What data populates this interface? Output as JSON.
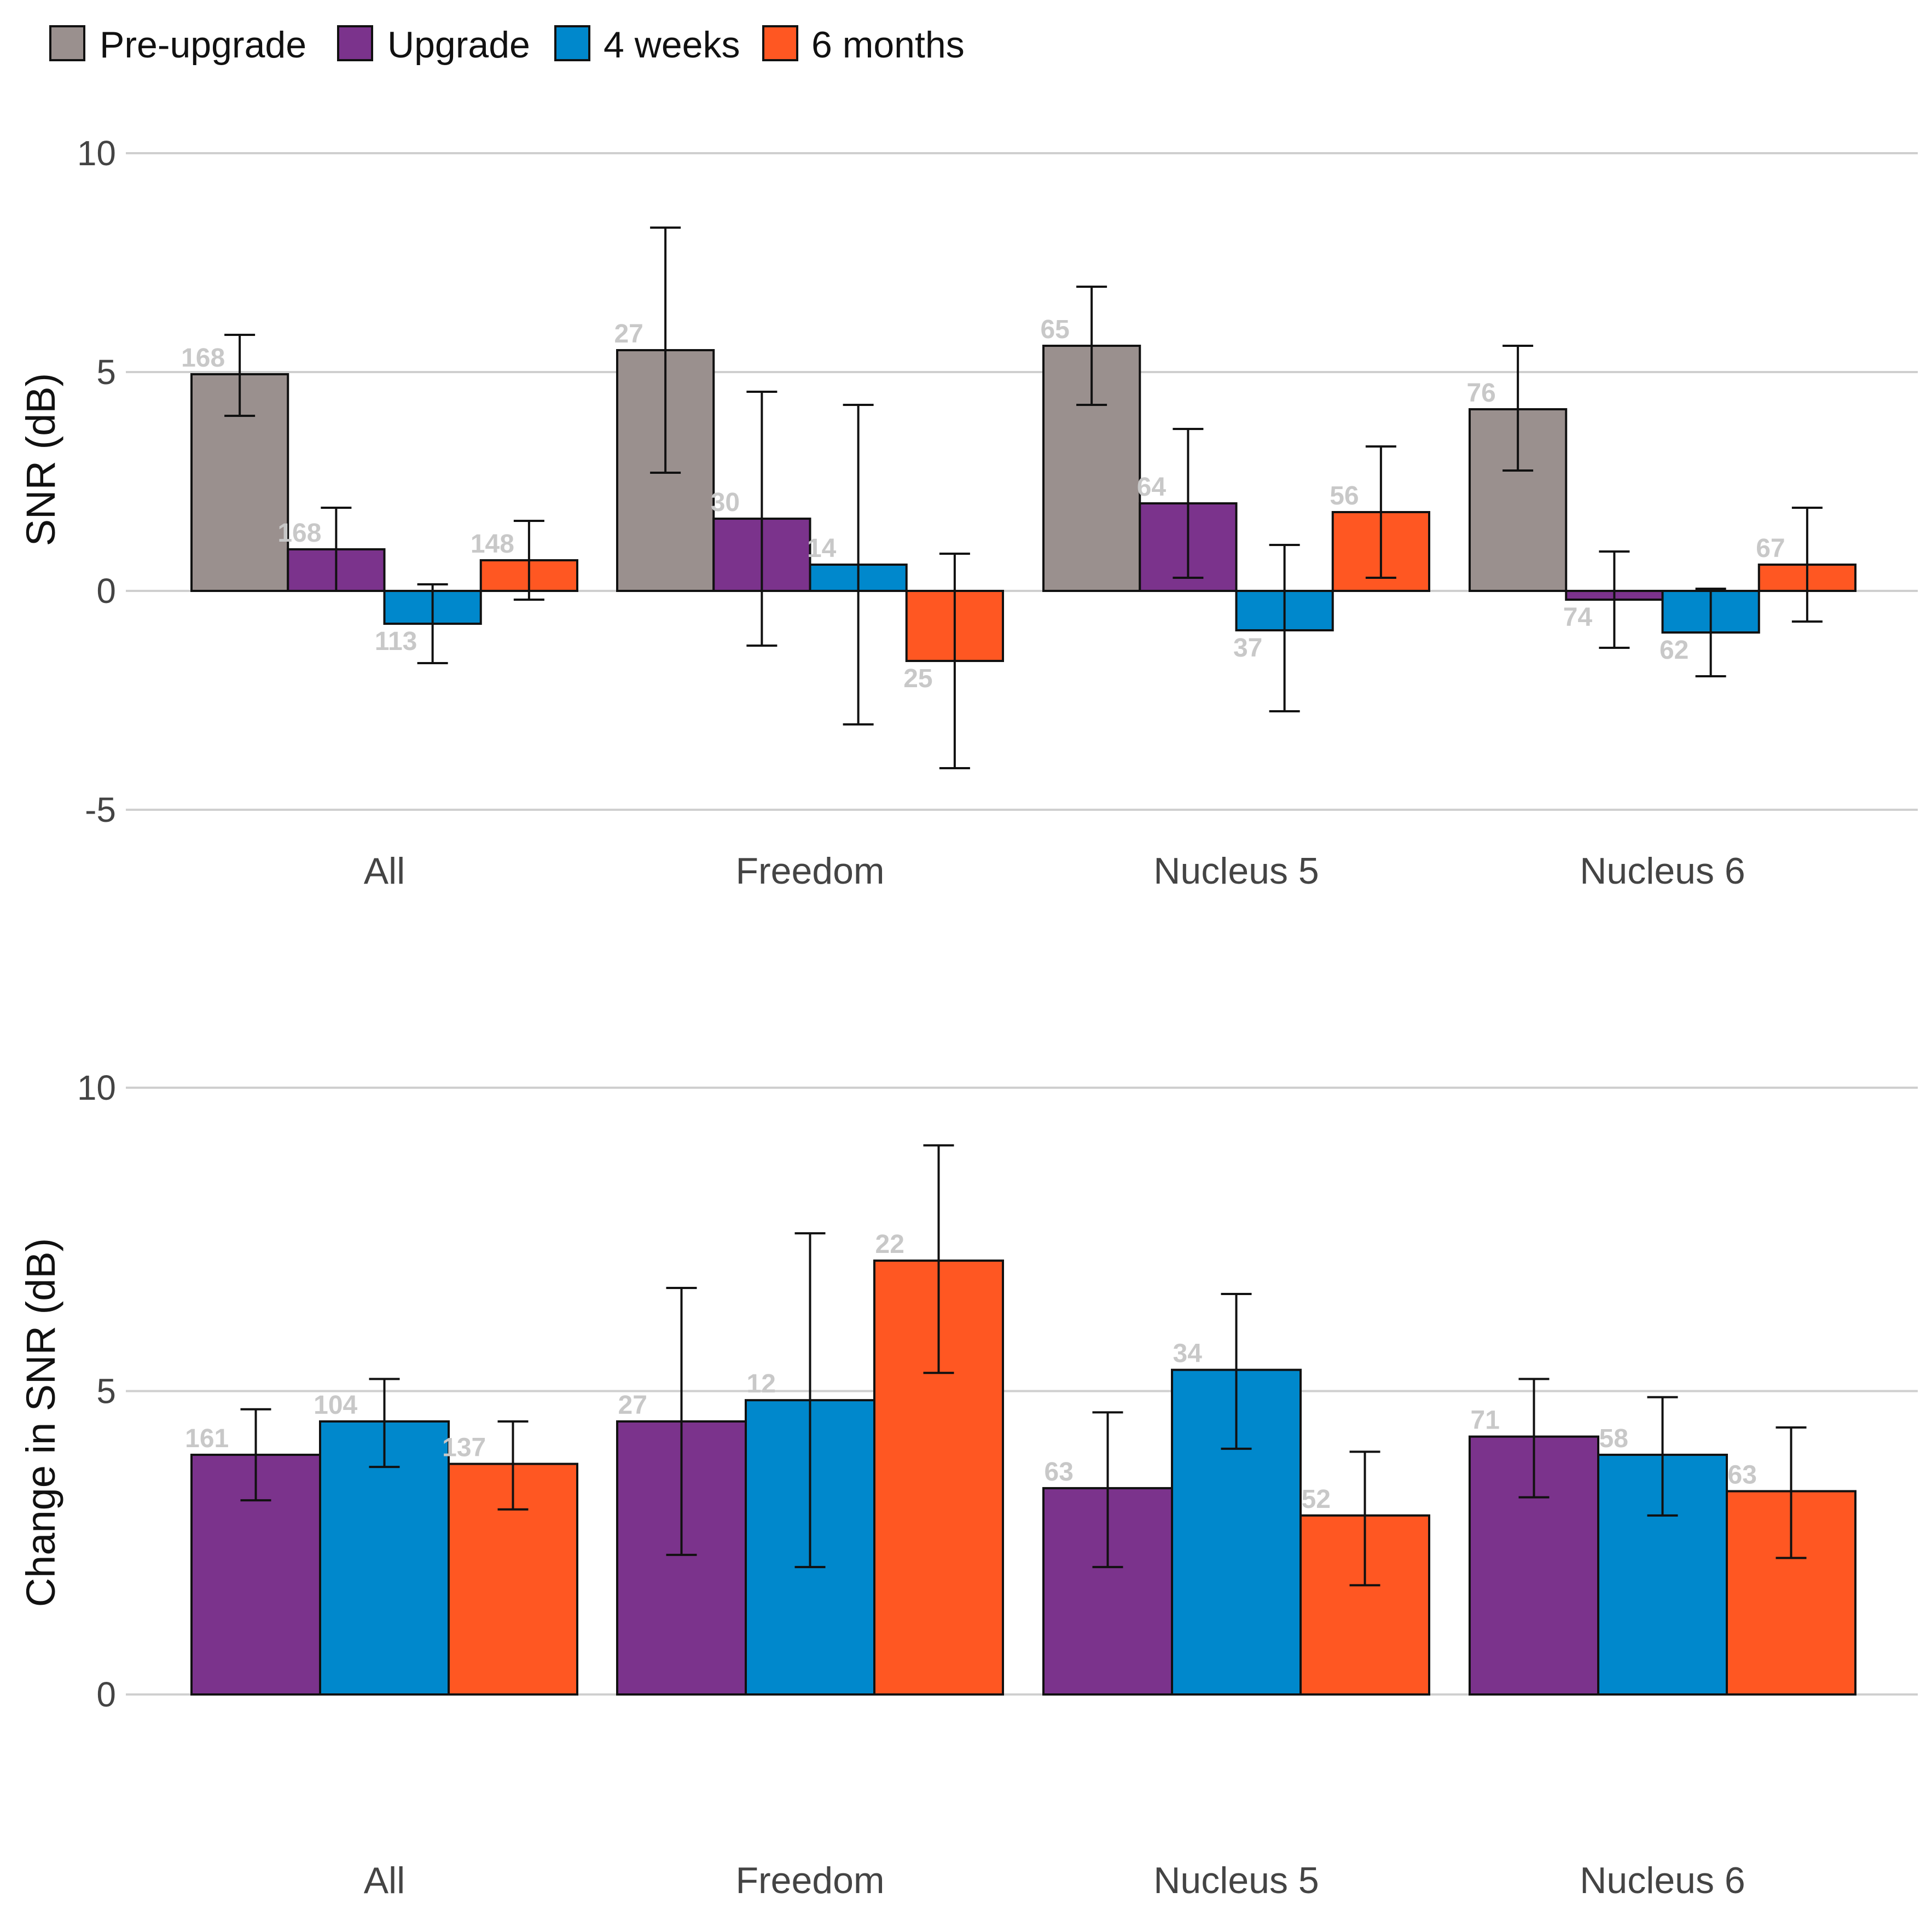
{
  "legend": [
    {
      "name": "Pre-upgrade",
      "color": "#9a908e"
    },
    {
      "name": "Upgrade",
      "color": "#7b338c"
    },
    {
      "name": "4 weeks",
      "color": "#0088cc"
    },
    {
      "name": "6 months",
      "color": "#ff5722"
    }
  ],
  "chart_data": [
    {
      "type": "bar",
      "ylabel": "SNR (dB)",
      "ylim": [
        -5,
        10
      ],
      "yticks": [
        -5,
        0,
        5,
        10
      ],
      "categories": [
        "All",
        "Freedom",
        "Nucleus 5",
        "Nucleus 6"
      ],
      "series": [
        {
          "name": "Pre-upgrade",
          "color": "#9a908e",
          "values": [
            4.95,
            5.5,
            5.6,
            4.15
          ],
          "err_low": [
            4.0,
            2.7,
            4.25,
            2.75
          ],
          "err_high": [
            5.85,
            8.3,
            6.95,
            5.6
          ],
          "n": [
            "168",
            "27",
            "65",
            "76"
          ]
        },
        {
          "name": "Upgrade",
          "color": "#7b338c",
          "values": [
            0.95,
            1.65,
            2.0,
            -0.2
          ],
          "err_low": [
            0.0,
            -1.25,
            0.3,
            -1.3
          ],
          "err_high": [
            1.9,
            4.55,
            3.7,
            0.9
          ],
          "n": [
            "168",
            "30",
            "64",
            "74"
          ]
        },
        {
          "name": "4 weeks",
          "color": "#0088cc",
          "values": [
            -0.75,
            0.6,
            -0.9,
            -0.95
          ],
          "err_low": [
            -1.65,
            -3.05,
            -2.75,
            -1.95
          ],
          "err_high": [
            0.15,
            4.25,
            1.05,
            0.05
          ],
          "n": [
            "113",
            "14",
            "37",
            "62"
          ]
        },
        {
          "name": "6 months",
          "color": "#ff5722",
          "values": [
            0.7,
            -1.6,
            1.8,
            0.6
          ],
          "err_low": [
            -0.2,
            -4.05,
            0.3,
            -0.7
          ],
          "err_high": [
            1.6,
            0.85,
            3.3,
            1.9
          ],
          "n": [
            "148",
            "25",
            "56",
            "67"
          ]
        }
      ]
    },
    {
      "type": "bar",
      "ylabel": "Change in SNR (dB)",
      "ylim": [
        0,
        10
      ],
      "yticks": [
        0,
        5,
        10
      ],
      "categories": [
        "All",
        "Freedom",
        "Nucleus 5",
        "Nucleus 6"
      ],
      "series": [
        {
          "name": "Upgrade",
          "color": "#7b338c",
          "values": [
            3.95,
            4.5,
            3.4,
            4.25
          ],
          "err_low": [
            3.2,
            2.3,
            2.1,
            3.25
          ],
          "err_high": [
            4.7,
            6.7,
            4.65,
            5.2
          ],
          "n": [
            "161",
            "27",
            "63",
            "71"
          ]
        },
        {
          "name": "4 weeks",
          "color": "#0088cc",
          "values": [
            4.5,
            4.85,
            5.35,
            3.95
          ],
          "err_low": [
            3.75,
            2.1,
            4.05,
            2.95
          ],
          "err_high": [
            5.2,
            7.6,
            6.6,
            4.9
          ],
          "n": [
            "104",
            "12",
            "34",
            "58"
          ]
        },
        {
          "name": "6 months",
          "color": "#ff5722",
          "values": [
            3.8,
            7.15,
            2.95,
            3.35
          ],
          "err_low": [
            3.05,
            5.3,
            1.8,
            2.25
          ],
          "err_high": [
            4.5,
            9.05,
            4.0,
            4.4
          ],
          "n": [
            "137",
            "22",
            "52",
            "63"
          ]
        }
      ]
    }
  ]
}
